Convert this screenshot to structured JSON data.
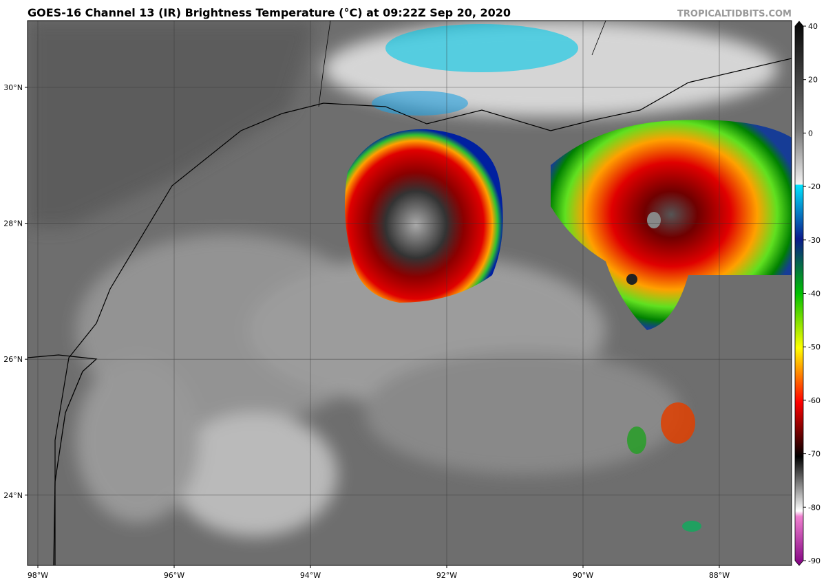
{
  "header": {
    "title": "GOES-16 Channel 13 (IR) Brightness Temperature (°C) at 09:22Z Sep 20, 2020",
    "credit": "TROPICALTIDBITS.COM"
  },
  "map": {
    "lon_ticks": [
      "98°W",
      "96°W",
      "94°W",
      "92°W",
      "90°W",
      "88°W"
    ],
    "lat_ticks": [
      "30°N",
      "28°N",
      "26°N",
      "24°N"
    ]
  },
  "colorbar": {
    "ticks": [
      40,
      20,
      0,
      -20,
      -30,
      -40,
      -50,
      -60,
      -70,
      -80,
      -90
    ]
  }
}
